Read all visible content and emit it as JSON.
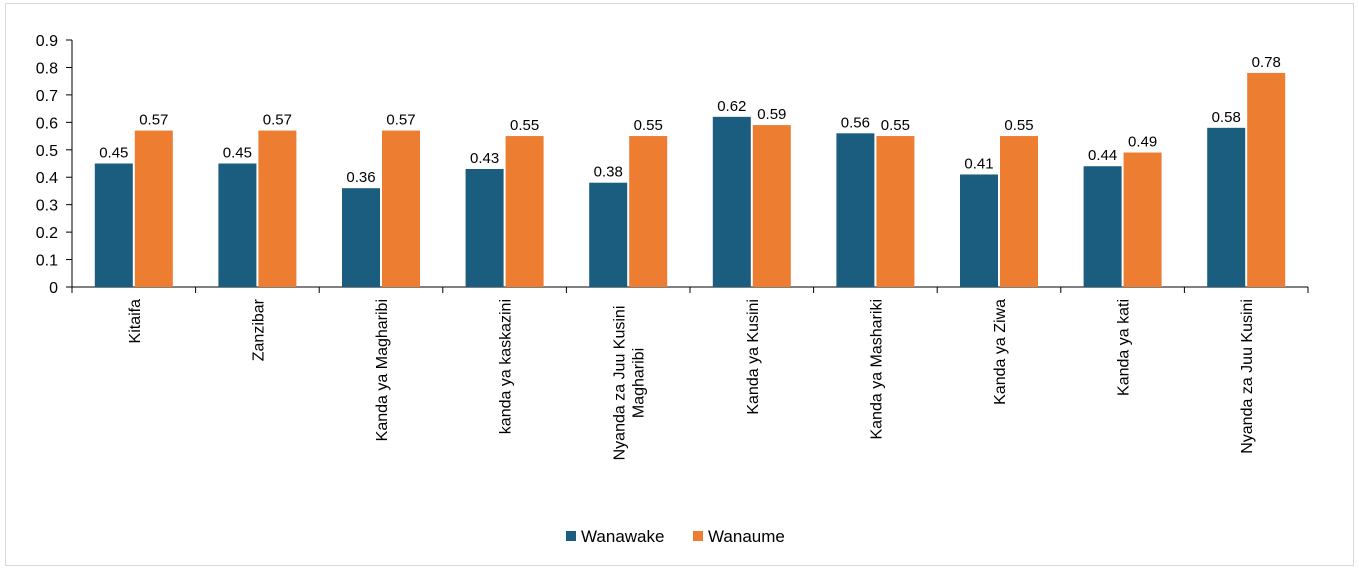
{
  "chart_data": {
    "type": "bar",
    "title": "",
    "xlabel": "",
    "ylabel": "",
    "ylim": [
      0,
      0.9
    ],
    "yticks": [
      "0",
      "0.1",
      "0.2",
      "0.3",
      "0.4",
      "0.5",
      "0.6",
      "0.7",
      "0.8",
      "0.9"
    ],
    "grid": false,
    "legend_position": "bottom",
    "categories": [
      "Kitaifa",
      "Zanzibar",
      "Kanda ya Magharibi",
      "kanda ya kaskazini",
      "Nyanda za Juu Kusini Magharibi",
      "Kanda ya Kusini",
      "Kanda ya Mashariki",
      "Kanda ya Ziwa",
      "Kanda ya kati",
      "Nyanda za Juu Kusini"
    ],
    "series": [
      {
        "name": "Wanawake",
        "color": "#1b5d7e",
        "values": [
          0.45,
          0.45,
          0.36,
          0.43,
          0.38,
          0.62,
          0.56,
          0.41,
          0.44,
          0.58
        ],
        "labels": [
          "0.45",
          "0.45",
          "0.36",
          "0.43",
          "0.38",
          "0.62",
          "0.56",
          "0.41",
          "0.44",
          "0.58"
        ]
      },
      {
        "name": "Wanaume",
        "color": "#ed7d31",
        "values": [
          0.57,
          0.57,
          0.57,
          0.55,
          0.55,
          0.59,
          0.55,
          0.55,
          0.49,
          0.78
        ],
        "labels": [
          "0.57",
          "0.57",
          "0.57",
          "0.55",
          "0.55",
          "0.59",
          "0.55",
          "0.55",
          "0.49",
          "0.78"
        ]
      }
    ]
  }
}
